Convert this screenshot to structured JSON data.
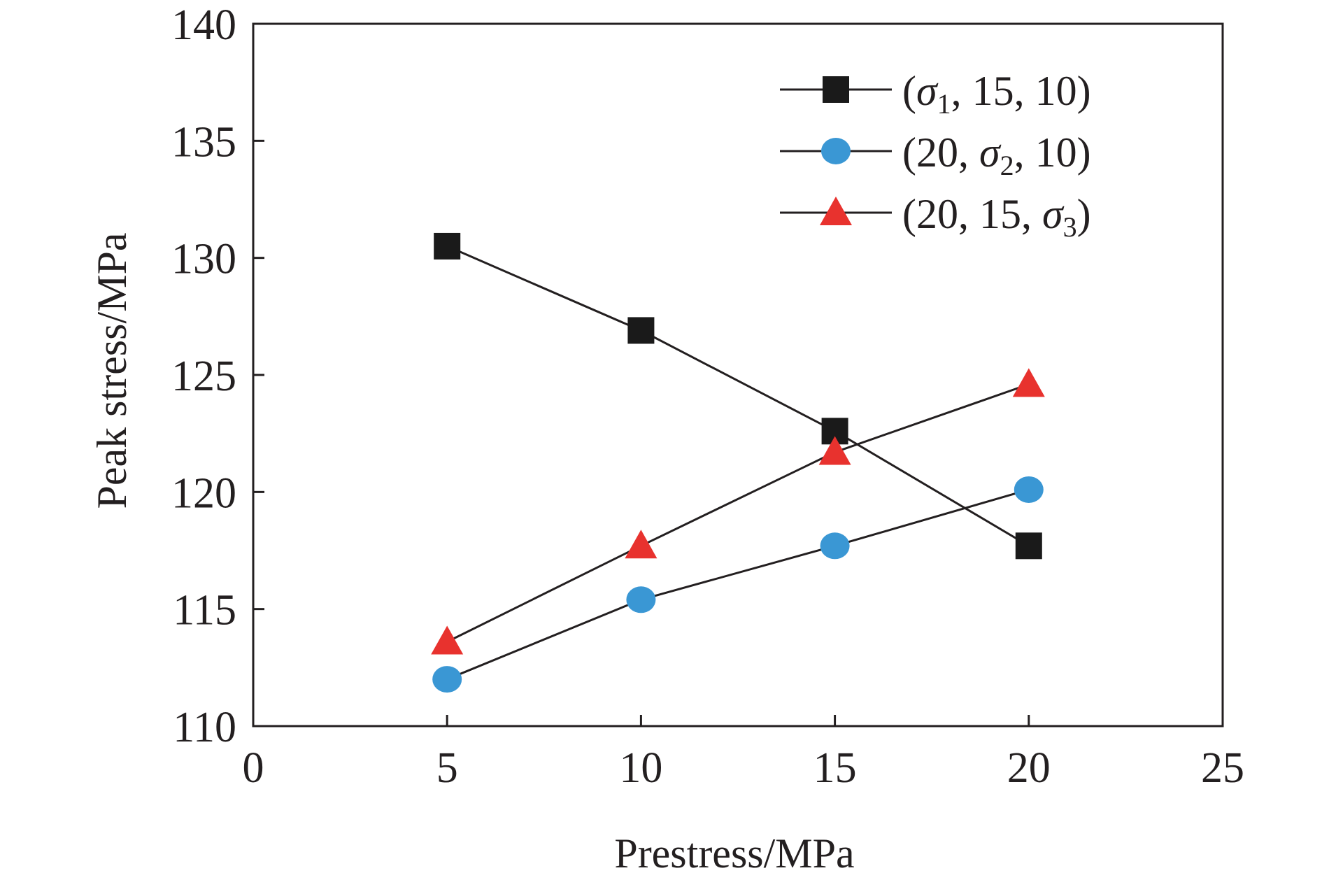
{
  "chart_data": {
    "type": "line",
    "title": "",
    "xlabel": "Prestress/MPa",
    "ylabel": "Peak stress/MPa",
    "xlim": [
      0,
      25
    ],
    "ylim": [
      110,
      140
    ],
    "xticks": [
      0,
      5,
      10,
      15,
      20,
      25
    ],
    "yticks": [
      110,
      115,
      120,
      125,
      130,
      135,
      140
    ],
    "grid": false,
    "legend_position": "top-right",
    "series": [
      {
        "name": "(σ1, 15, 10)",
        "name_parts": [
          "(",
          "σ",
          "1",
          ", 15, 10)"
        ],
        "marker": "square",
        "color": "#1a1a1a",
        "x": [
          5,
          10,
          15,
          20
        ],
        "y": [
          130.5,
          126.9,
          122.6,
          117.7
        ]
      },
      {
        "name": "(20, σ2, 10)",
        "name_parts": [
          "(20, ",
          "σ",
          "2",
          ", 10)"
        ],
        "marker": "circle",
        "color": "#3a97d4",
        "x": [
          5,
          10,
          15,
          20
        ],
        "y": [
          112.0,
          115.4,
          117.7,
          120.1
        ]
      },
      {
        "name": "(20, 15, σ3)",
        "name_parts": [
          "(20, 15, ",
          "σ",
          "3",
          ")"
        ],
        "marker": "triangle",
        "color": "#e8322e",
        "x": [
          5,
          10,
          15,
          20
        ],
        "y": [
          113.6,
          117.7,
          121.7,
          124.6
        ]
      }
    ]
  }
}
